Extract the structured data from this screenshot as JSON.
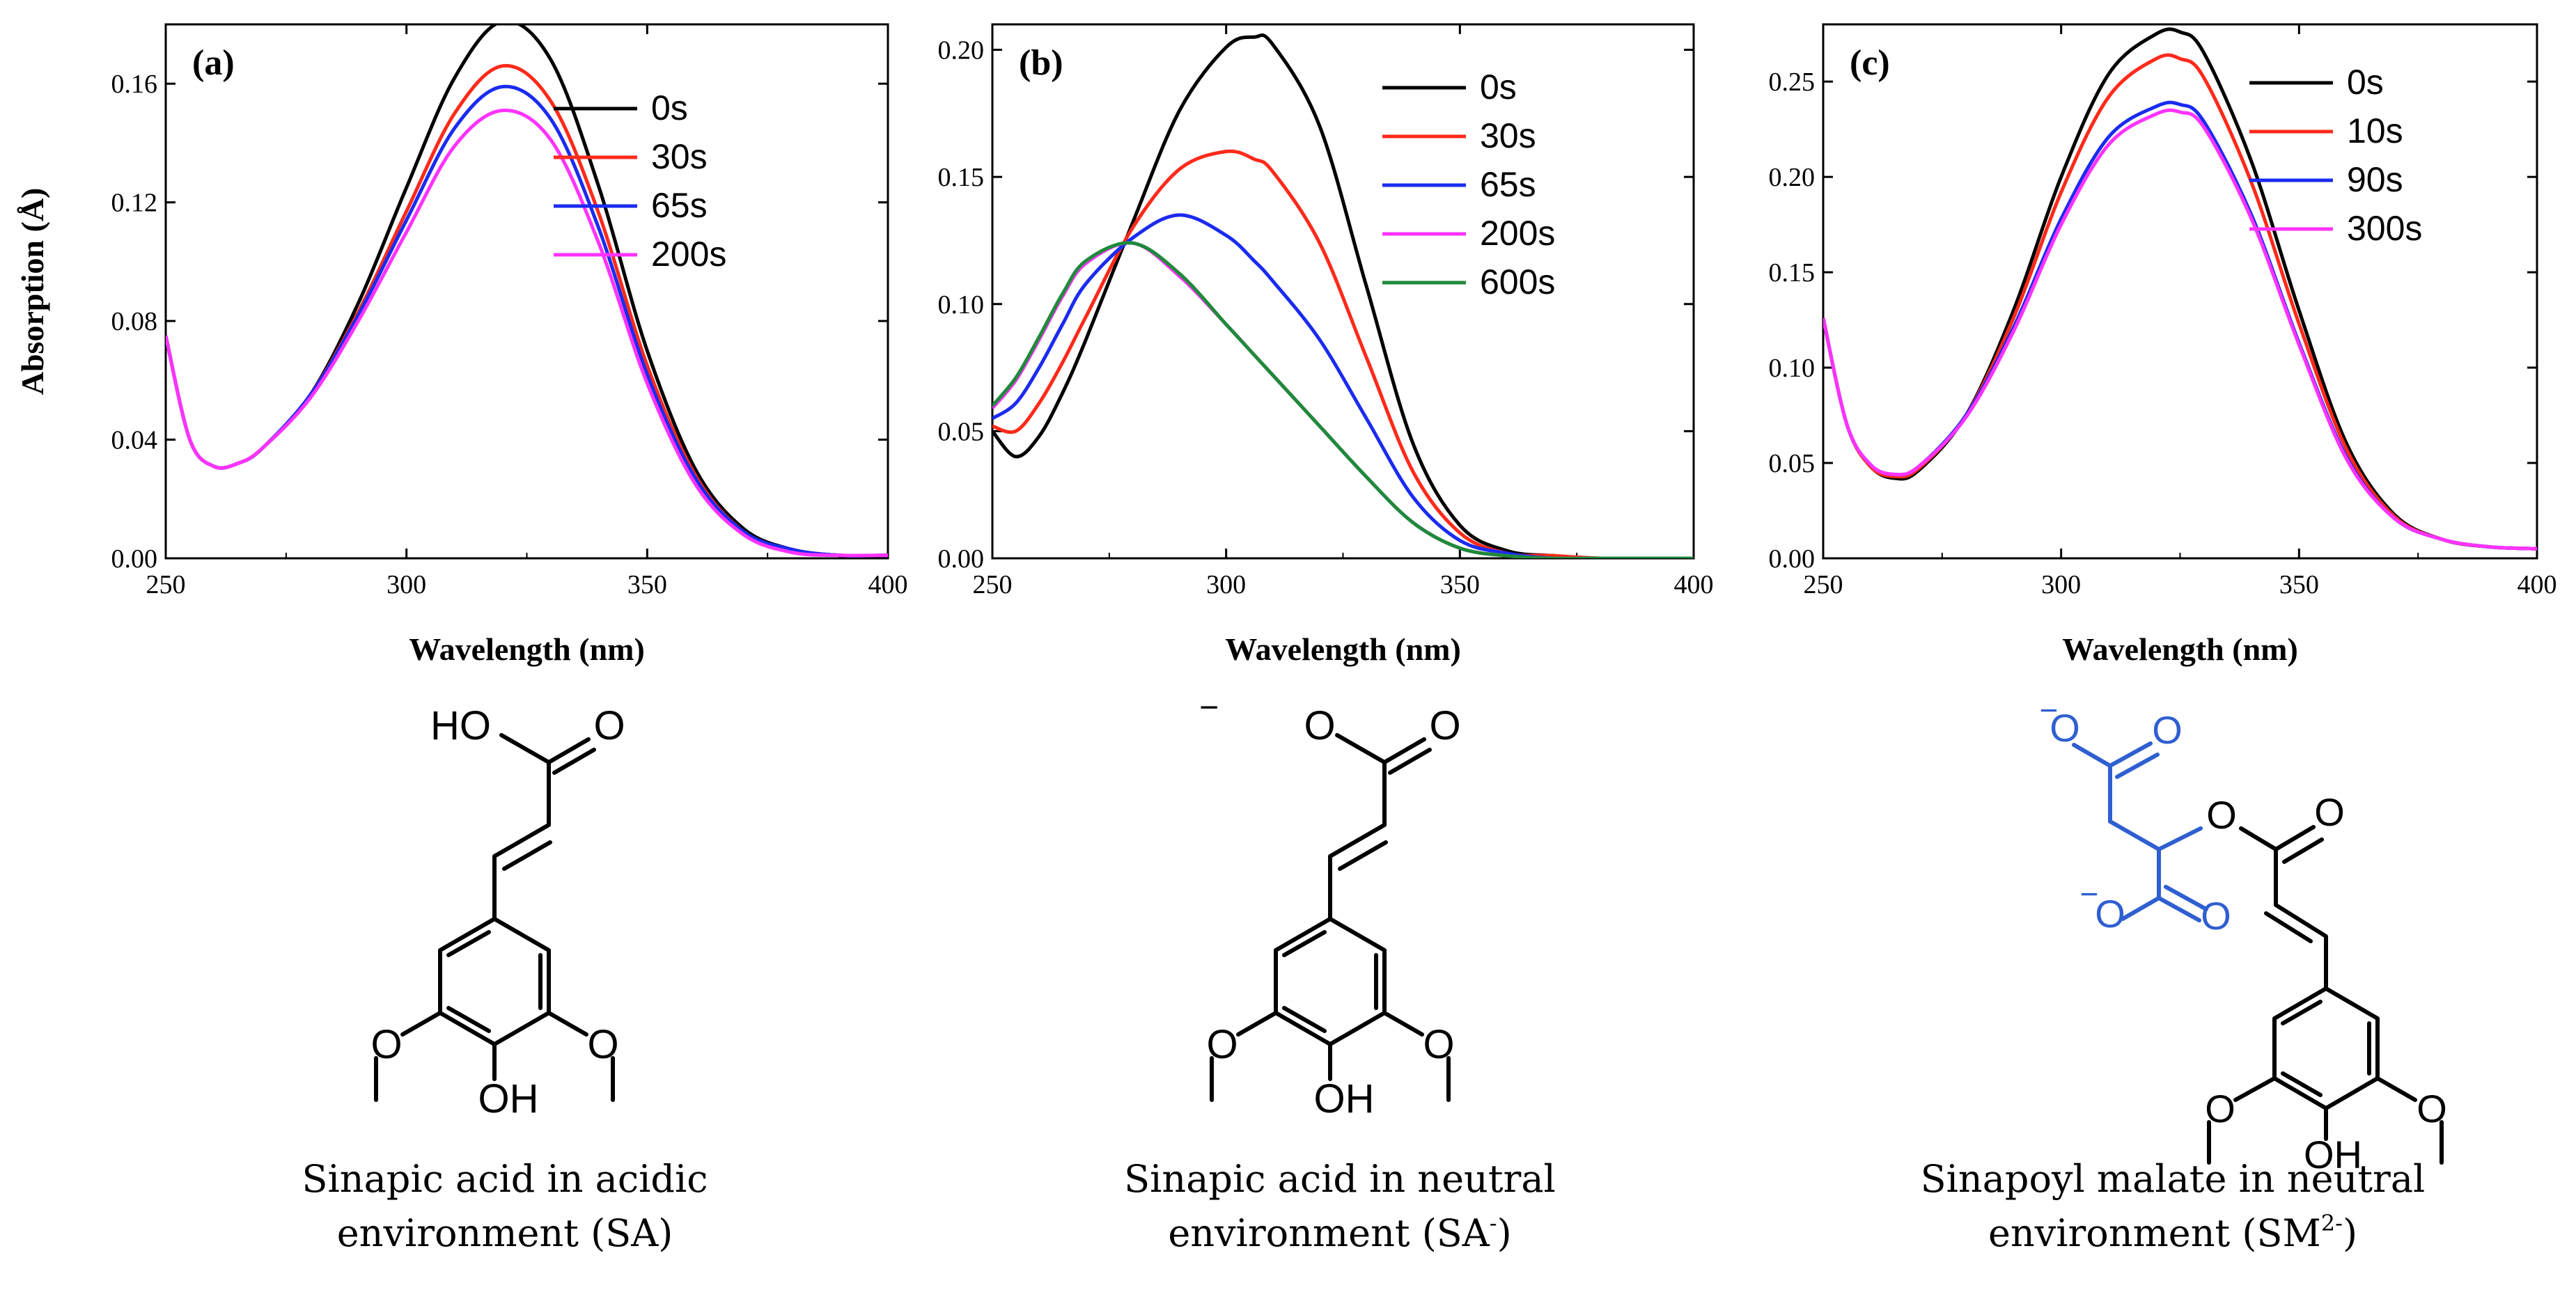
{
  "figure": {
    "charts": [
      {
        "panel_label": "(a)",
        "ylabel": "Absorption (Å)",
        "xlabel": "Wavelength (nm)",
        "yticks": [
          "0.00",
          "0.04",
          "0.08",
          "0.12",
          "0.16"
        ],
        "xticks": [
          "250",
          "300",
          "350",
          "400"
        ],
        "legend": [
          "0s",
          "30s",
          "65s",
          "200s"
        ]
      },
      {
        "panel_label": "(b)",
        "ylabel": "",
        "xlabel": "Wavelength (nm)",
        "yticks": [
          "0.00",
          "0.05",
          "0.10",
          "0.15",
          "0.20"
        ],
        "xticks": [
          "250",
          "300",
          "350",
          "400"
        ],
        "legend": [
          "0s",
          "30s",
          "65s",
          "200s",
          "600s"
        ]
      },
      {
        "panel_label": "(c)",
        "ylabel": "",
        "xlabel": "Wavelength (nm)",
        "yticks": [
          "0.00",
          "0.05",
          "0.10",
          "0.15",
          "0.20",
          "0.25"
        ],
        "xticks": [
          "250",
          "300",
          "350",
          "400"
        ],
        "legend": [
          "0s",
          "10s",
          "90s",
          "300s"
        ]
      }
    ],
    "structures": [
      {
        "labels": {
          "acid": "HO",
          "carbonyl_o": "O",
          "methoxy_left": "O",
          "methoxy_right": "O",
          "hydroxyl": "OH"
        },
        "caption": {
          "line1": "Sinapic acid in acidic",
          "line2": "environment (SA)"
        }
      },
      {
        "labels": {
          "charge": "−",
          "carboxylate_o": "O",
          "carbonyl_o": "O",
          "methoxy_left": "O",
          "methoxy_right": "O",
          "hydroxyl": "OH"
        },
        "caption": {
          "line1": "Sinapic acid in neutral",
          "line2_prefix": "environment (SA",
          "line2_sup": "-",
          "line2_suffix": ")"
        }
      },
      {
        "labels": {
          "charge_top": "−",
          "carboxylate_top_o": "O",
          "carbonyl_top_o": "O",
          "charge_bottom": "−",
          "carboxylate_bottom_o": "O",
          "carbonyl_bottom_o": "O",
          "ester_o": "O",
          "carbonyl_o": "O",
          "methoxy_left": "O",
          "methoxy_right": "O",
          "hydroxyl": "OH"
        },
        "caption": {
          "line1": "Sinapoyl malate in neutral",
          "line2_prefix": "environment (SM",
          "line2_sup": "2-",
          "line2_suffix": ")"
        }
      }
    ],
    "colors": {
      "black": "#000000",
      "red": "#ff2a1a",
      "blue": "#1a2bf0",
      "magenta": "#ff33ff",
      "green": "#1e8a3a",
      "malate_blue": "#2f5fd0"
    }
  },
  "chart_data": [
    {
      "type": "line",
      "title": "(a)",
      "xlabel": "Wavelength (nm)",
      "ylabel": "Absorption (Å)",
      "xlim": [
        250,
        400
      ],
      "ylim": [
        0,
        0.18
      ],
      "x": [
        250,
        255,
        260,
        265,
        270,
        280,
        290,
        300,
        310,
        320,
        330,
        340,
        350,
        360,
        370,
        380,
        390,
        400
      ],
      "series": [
        {
          "name": "0s",
          "color": "#000000",
          "values": [
            0.075,
            0.04,
            0.031,
            0.032,
            0.037,
            0.055,
            0.086,
            0.125,
            0.162,
            0.181,
            0.168,
            0.125,
            0.07,
            0.03,
            0.01,
            0.003,
            0.001,
            0.001
          ]
        },
        {
          "name": "30s",
          "color": "#ff2a1a",
          "values": [
            0.075,
            0.04,
            0.031,
            0.032,
            0.037,
            0.055,
            0.083,
            0.117,
            0.15,
            0.166,
            0.154,
            0.116,
            0.065,
            0.028,
            0.009,
            0.003,
            0.001,
            0.001
          ]
        },
        {
          "name": "65s",
          "color": "#1a2bf0",
          "values": [
            0.075,
            0.04,
            0.031,
            0.032,
            0.037,
            0.055,
            0.082,
            0.114,
            0.145,
            0.159,
            0.148,
            0.111,
            0.062,
            0.027,
            0.009,
            0.003,
            0.001,
            0.001
          ]
        },
        {
          "name": "200s",
          "color": "#ff33ff",
          "values": [
            0.075,
            0.04,
            0.031,
            0.032,
            0.037,
            0.054,
            0.08,
            0.11,
            0.139,
            0.151,
            0.141,
            0.106,
            0.059,
            0.025,
            0.008,
            0.002,
            0.001,
            0.001
          ]
        }
      ],
      "legend": "top-right",
      "grid": false
    },
    {
      "type": "line",
      "title": "(b)",
      "xlabel": "Wavelength (nm)",
      "ylabel": "",
      "xlim": [
        250,
        400
      ],
      "ylim": [
        0,
        0.21
      ],
      "x": [
        250,
        255,
        260,
        265,
        270,
        280,
        290,
        300,
        306,
        310,
        320,
        330,
        340,
        350,
        360,
        370,
        380,
        390,
        400
      ],
      "series": [
        {
          "name": "0s",
          "color": "#000000",
          "values": [
            0.05,
            0.04,
            0.048,
            0.065,
            0.086,
            0.132,
            0.176,
            0.201,
            0.205,
            0.202,
            0.17,
            0.107,
            0.045,
            0.013,
            0.003,
            0.001,
            0.0,
            0.0,
            0.0
          ]
        },
        {
          "name": "30s",
          "color": "#ff2a1a",
          "values": [
            0.052,
            0.05,
            0.061,
            0.077,
            0.095,
            0.13,
            0.153,
            0.16,
            0.157,
            0.152,
            0.124,
            0.079,
            0.034,
            0.01,
            0.002,
            0.001,
            0.0,
            0.0,
            0.0
          ]
        },
        {
          "name": "65s",
          "color": "#1a2bf0",
          "values": [
            0.055,
            0.061,
            0.075,
            0.092,
            0.108,
            0.126,
            0.135,
            0.127,
            0.117,
            0.109,
            0.086,
            0.055,
            0.024,
            0.007,
            0.002,
            0.0,
            0.0,
            0.0,
            0.0
          ]
        },
        {
          "name": "200s",
          "color": "#ff33ff",
          "values": [
            0.059,
            0.07,
            0.086,
            0.103,
            0.116,
            0.124,
            0.111,
            0.092,
            0.08,
            0.072,
            0.052,
            0.032,
            0.014,
            0.004,
            0.001,
            0.0,
            0.0,
            0.0,
            0.0
          ]
        },
        {
          "name": "600s",
          "color": "#1e8a3a",
          "values": [
            0.06,
            0.071,
            0.087,
            0.104,
            0.117,
            0.124,
            0.112,
            0.092,
            0.08,
            0.072,
            0.052,
            0.032,
            0.014,
            0.004,
            0.001,
            0.0,
            0.0,
            0.0,
            0.0
          ]
        }
      ],
      "legend": "top-right",
      "grid": false
    },
    {
      "type": "line",
      "title": "(c)",
      "xlabel": "Wavelength (nm)",
      "ylabel": "",
      "xlim": [
        250,
        400
      ],
      "ylim": [
        0,
        0.28
      ],
      "x": [
        250,
        255,
        260,
        265,
        270,
        280,
        290,
        300,
        310,
        320,
        325,
        330,
        340,
        350,
        360,
        370,
        380,
        390,
        400
      ],
      "series": [
        {
          "name": "0s",
          "color": "#000000",
          "values": [
            0.126,
            0.07,
            0.048,
            0.042,
            0.046,
            0.075,
            0.13,
            0.2,
            0.254,
            0.275,
            0.276,
            0.265,
            0.208,
            0.13,
            0.06,
            0.023,
            0.01,
            0.006,
            0.005
          ]
        },
        {
          "name": "10s",
          "color": "#ff2a1a",
          "values": [
            0.126,
            0.07,
            0.048,
            0.043,
            0.047,
            0.075,
            0.126,
            0.192,
            0.242,
            0.262,
            0.262,
            0.252,
            0.197,
            0.123,
            0.057,
            0.022,
            0.01,
            0.006,
            0.005
          ]
        },
        {
          "name": "90s",
          "color": "#1a2bf0",
          "values": [
            0.126,
            0.07,
            0.049,
            0.044,
            0.048,
            0.075,
            0.121,
            0.178,
            0.221,
            0.237,
            0.238,
            0.229,
            0.18,
            0.113,
            0.053,
            0.021,
            0.01,
            0.006,
            0.005
          ]
        },
        {
          "name": "300s",
          "color": "#ff33ff",
          "values": [
            0.126,
            0.07,
            0.049,
            0.044,
            0.048,
            0.074,
            0.119,
            0.175,
            0.217,
            0.233,
            0.234,
            0.226,
            0.178,
            0.112,
            0.052,
            0.021,
            0.01,
            0.006,
            0.005
          ]
        }
      ],
      "legend": "top-right",
      "grid": false
    }
  ]
}
